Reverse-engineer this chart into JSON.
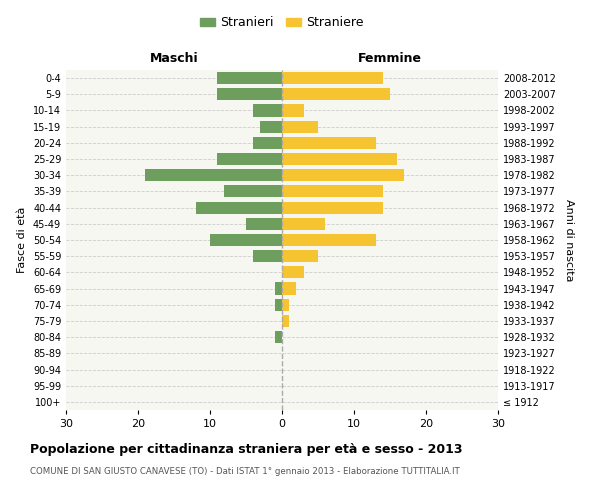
{
  "age_groups": [
    "100+",
    "95-99",
    "90-94",
    "85-89",
    "80-84",
    "75-79",
    "70-74",
    "65-69",
    "60-64",
    "55-59",
    "50-54",
    "45-49",
    "40-44",
    "35-39",
    "30-34",
    "25-29",
    "20-24",
    "15-19",
    "10-14",
    "5-9",
    "0-4"
  ],
  "birth_years": [
    "≤ 1912",
    "1913-1917",
    "1918-1922",
    "1923-1927",
    "1928-1932",
    "1933-1937",
    "1938-1942",
    "1943-1947",
    "1948-1952",
    "1953-1957",
    "1958-1962",
    "1963-1967",
    "1968-1972",
    "1973-1977",
    "1978-1982",
    "1983-1987",
    "1988-1992",
    "1993-1997",
    "1998-2002",
    "2003-2007",
    "2008-2012"
  ],
  "maschi": [
    0,
    0,
    0,
    0,
    1,
    0,
    1,
    1,
    0,
    4,
    10,
    5,
    12,
    8,
    19,
    9,
    4,
    3,
    4,
    9,
    9
  ],
  "femmine": [
    0,
    0,
    0,
    0,
    0,
    1,
    1,
    2,
    3,
    5,
    13,
    6,
    14,
    14,
    17,
    16,
    13,
    5,
    3,
    15,
    14
  ],
  "color_maschi": "#6e9e5e",
  "color_femmine": "#f5c430",
  "xlim": 30,
  "title": "Popolazione per cittadinanza straniera per età e sesso - 2013",
  "subtitle": "COMUNE DI SAN GIUSTO CANAVESE (TO) - Dati ISTAT 1° gennaio 2013 - Elaborazione TUTTITALIA.IT",
  "ylabel_left": "Fasce di età",
  "ylabel_right": "Anni di nascita",
  "label_maschi": "Stranieri",
  "label_femmine": "Straniere",
  "header_maschi": "Maschi",
  "header_femmine": "Femmine"
}
